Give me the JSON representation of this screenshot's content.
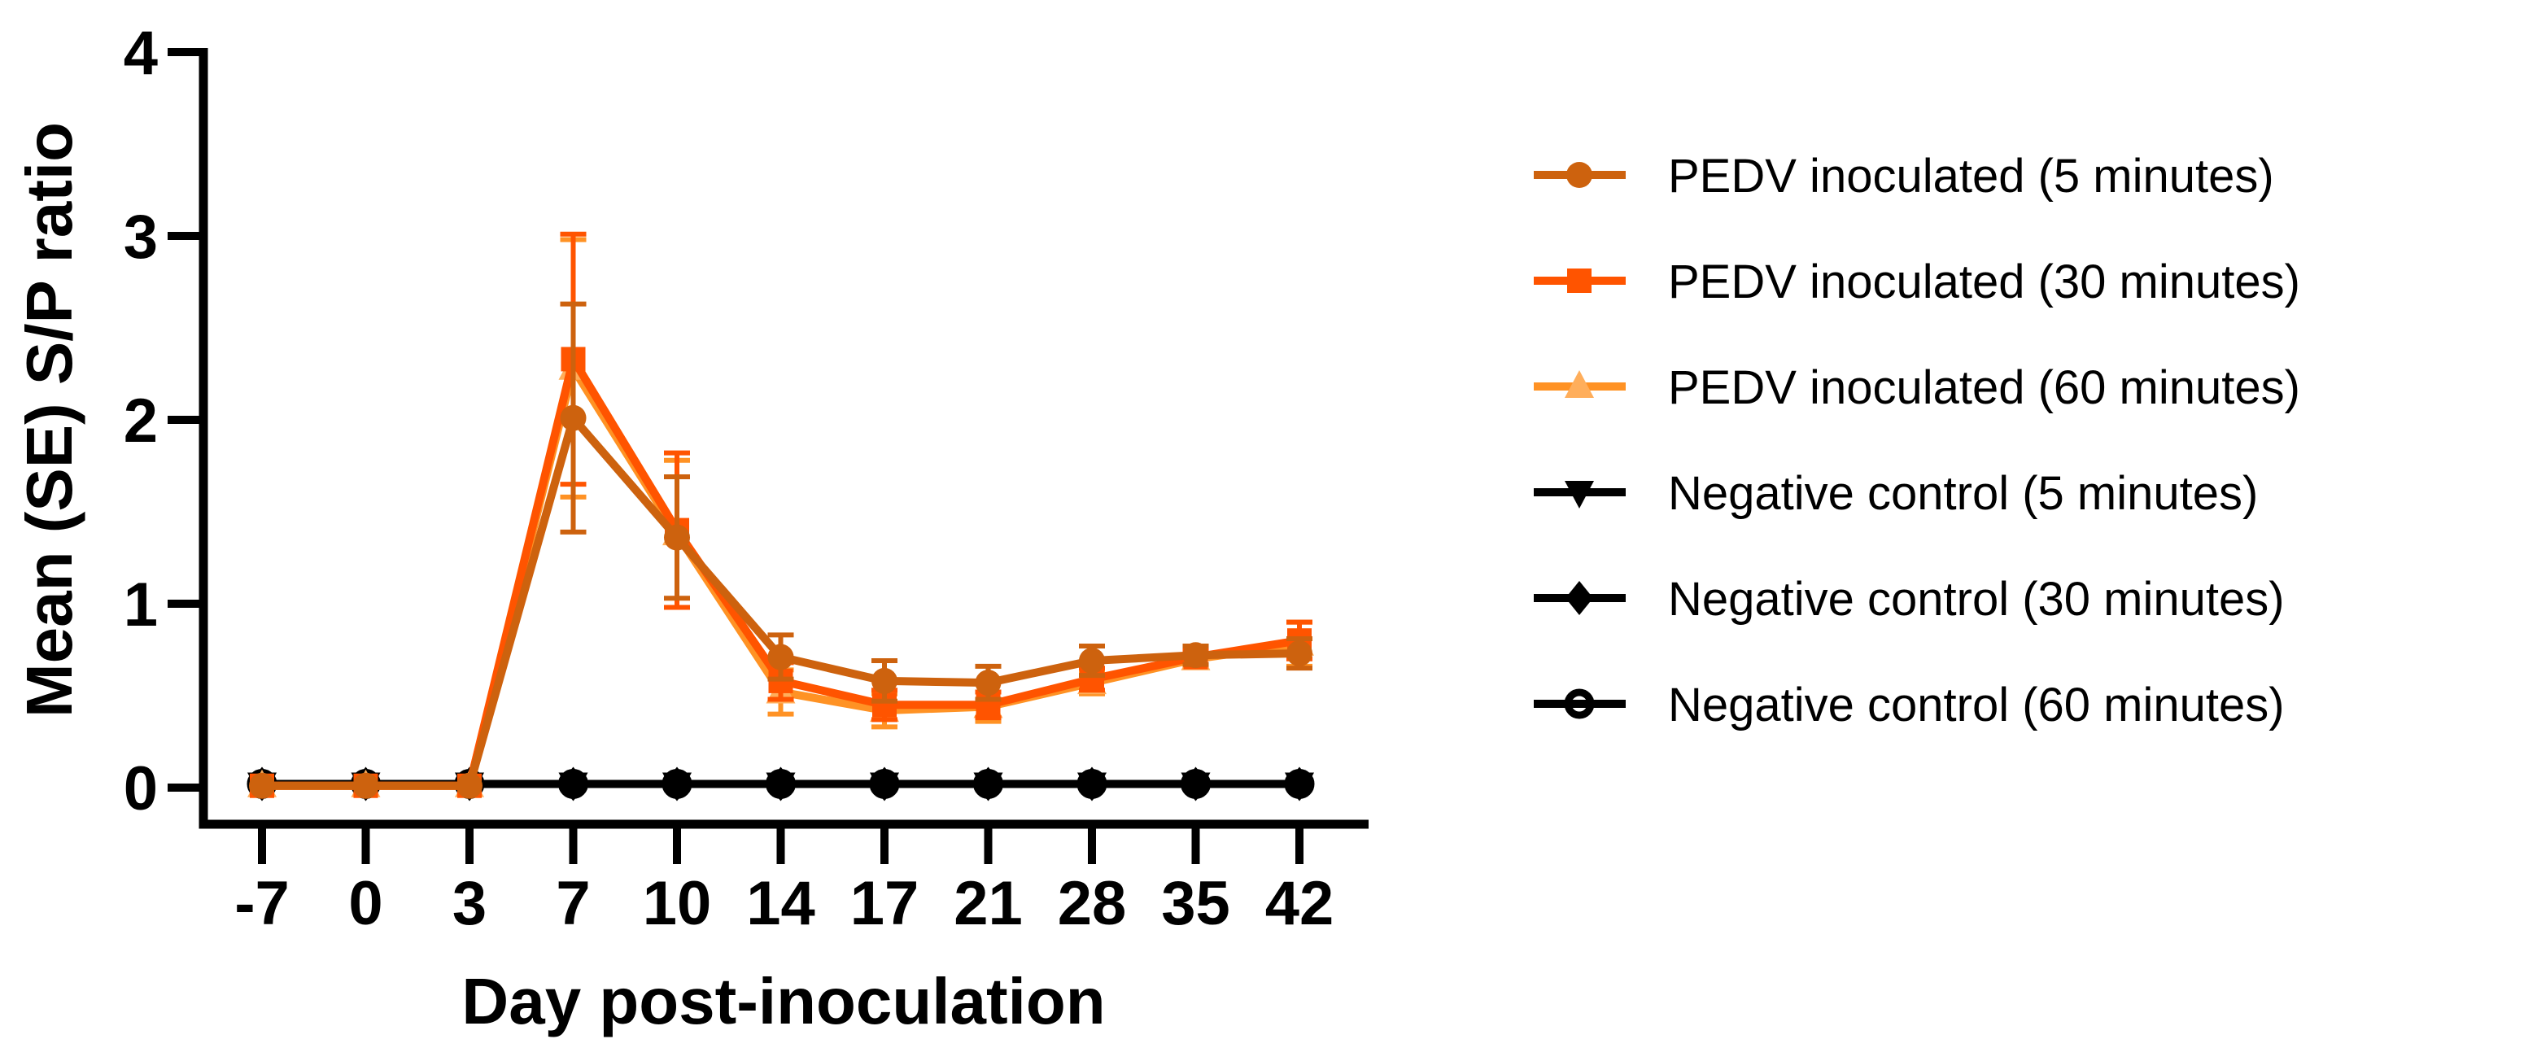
{
  "chart_data": {
    "type": "line",
    "title": "",
    "xlabel": "Day post-inoculation",
    "ylabel": "Mean (SE) S/P ratio",
    "categories": [
      -7,
      0,
      3,
      7,
      10,
      14,
      17,
      21,
      28,
      35,
      42
    ],
    "x_tick_labels": [
      "-7",
      "0",
      "3",
      "7",
      "10",
      "14",
      "17",
      "21",
      "28",
      "35",
      "42"
    ],
    "y_ticks": [
      0,
      1,
      2,
      3,
      4
    ],
    "y_tick_labels": [
      "0",
      "1",
      "2",
      "3",
      "4"
    ],
    "ylim": [
      0,
      4
    ],
    "grid": false,
    "legend_position": "right",
    "background": "#FFFFFF",
    "axis_color": "#000000",
    "series": [
      {
        "name": "PEDV inoculated (5 minutes)",
        "marker": "circle",
        "color": "#CD620E",
        "fill": "#CD620E",
        "values": [
          0.01,
          0.01,
          0.01,
          2.01,
          1.36,
          0.71,
          0.58,
          0.57,
          0.69,
          0.72,
          0.73
        ],
        "se": [
          0.02,
          0.02,
          0.02,
          0.62,
          0.33,
          0.12,
          0.11,
          0.09,
          0.08,
          0.05,
          0.08
        ]
      },
      {
        "name": "PEDV inoculated (30 minutes)",
        "marker": "square",
        "color": "#FF5400",
        "fill": "#FF5400",
        "values": [
          0.01,
          0.01,
          0.01,
          2.33,
          1.4,
          0.58,
          0.45,
          0.45,
          0.59,
          0.71,
          0.8
        ],
        "se": [
          0.02,
          0.02,
          0.02,
          0.68,
          0.42,
          0.1,
          0.08,
          0.07,
          0.06,
          0.04,
          0.1
        ]
      },
      {
        "name": "PEDV inoculated (60 minutes)",
        "marker": "triangle-up",
        "color": "#FF9224",
        "fill": "#FFAE5B",
        "values": [
          0.01,
          0.01,
          0.01,
          2.28,
          1.38,
          0.52,
          0.42,
          0.44,
          0.57,
          0.7,
          0.78
        ],
        "se": [
          0.02,
          0.02,
          0.02,
          0.7,
          0.4,
          0.12,
          0.09,
          0.08,
          0.06,
          0.04,
          0.12
        ]
      },
      {
        "name": "Negative control (5 minutes)",
        "marker": "triangle-down",
        "color": "#000000",
        "fill": "#000000",
        "values": [
          0.02,
          0.02,
          0.02,
          0.02,
          0.02,
          0.02,
          0.02,
          0.02,
          0.02,
          0.02,
          0.02
        ],
        "se": [
          0,
          0,
          0,
          0,
          0,
          0,
          0,
          0,
          0,
          0,
          0
        ]
      },
      {
        "name": "Negative control (30 minutes)",
        "marker": "diamond",
        "color": "#000000",
        "fill": "#000000",
        "values": [
          0.02,
          0.02,
          0.02,
          0.02,
          0.02,
          0.02,
          0.02,
          0.02,
          0.02,
          0.02,
          0.02
        ],
        "se": [
          0,
          0,
          0,
          0,
          0,
          0,
          0,
          0,
          0,
          0,
          0
        ]
      },
      {
        "name": "Negative control (60 minutes)",
        "marker": "circle-open",
        "color": "#000000",
        "fill": "none",
        "values": [
          0.02,
          0.02,
          0.02,
          0.02,
          0.02,
          0.02,
          0.02,
          0.02,
          0.02,
          0.02,
          0.02
        ],
        "se": [
          0,
          0,
          0,
          0,
          0,
          0,
          0,
          0,
          0,
          0,
          0
        ]
      }
    ]
  }
}
